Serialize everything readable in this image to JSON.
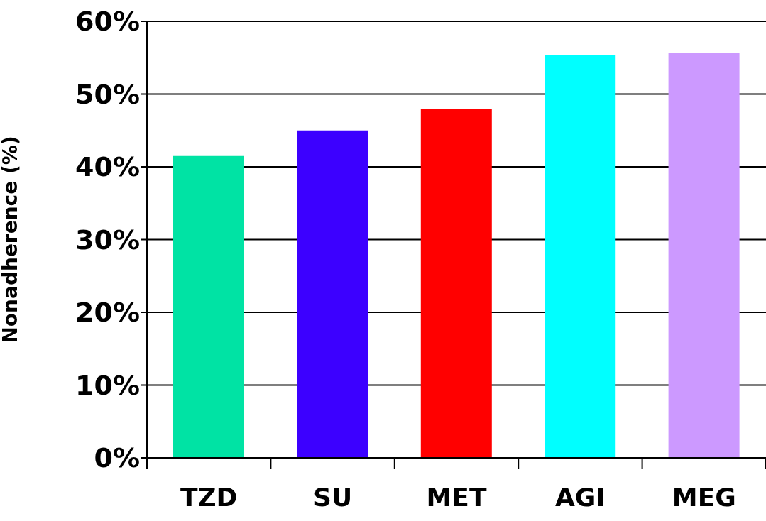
{
  "chart_data": {
    "type": "bar",
    "ylabel": "Nonadherence (%)",
    "categories": [
      "TZD",
      "SU",
      "MET",
      "AGI",
      "MEG"
    ],
    "values": [
      41.5,
      45,
      48,
      55.4,
      55.6
    ],
    "colors": [
      "#00e3a4",
      "#3c00ff",
      "#ff0000",
      "#00ffff",
      "#cc99ff"
    ],
    "ylim": [
      0,
      60
    ],
    "yticks": [
      {
        "value": 0,
        "label": "0%"
      },
      {
        "value": 10,
        "label": "10%"
      },
      {
        "value": 20,
        "label": "20%"
      },
      {
        "value": 30,
        "label": "30%"
      },
      {
        "value": 40,
        "label": "40%"
      },
      {
        "value": 50,
        "label": "50%"
      },
      {
        "value": 60,
        "label": "60%"
      }
    ],
    "grid": "y",
    "legend": false
  }
}
